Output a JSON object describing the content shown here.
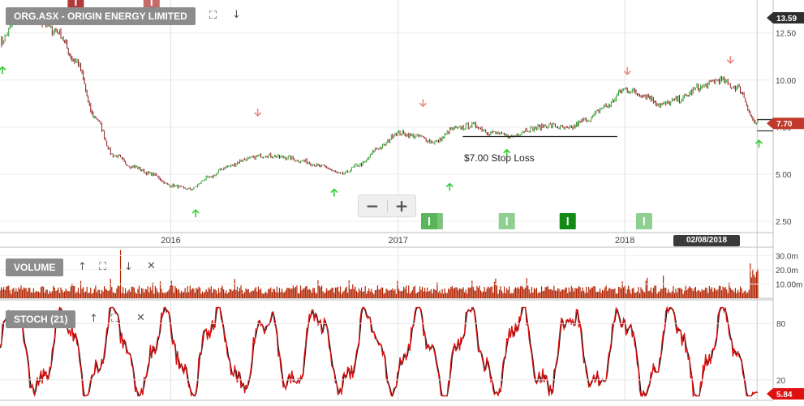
{
  "header": {
    "title": "ORG.ASX - ORIGIN ENERGY LIMITED",
    "fullscreen_icon": "expand-icon",
    "move_down_icon": "arrow-down-icon"
  },
  "zoom": {
    "minus": "−",
    "plus": "+"
  },
  "price_axis": {
    "ticks": [
      "12.50",
      "10.00",
      "7.50",
      "5.00",
      "2.50"
    ],
    "tick_values": [
      12.5,
      10.0,
      7.5,
      5.0,
      2.5
    ],
    "range": [
      1.9,
      14.25
    ]
  },
  "time_axis": {
    "labels": [
      "2016",
      "2017",
      "2018"
    ],
    "cursor_date": "02/08/2018"
  },
  "price_tags": {
    "high": "13.59",
    "current": "7.70",
    "high_value": 13.59,
    "current_value": 7.7
  },
  "stop_loss": {
    "label": "$7.00 Stop Loss",
    "value": 7.0
  },
  "volume_panel": {
    "label": "VOLUME",
    "ticks": [
      "30.0m",
      "20.0m",
      "10.00m"
    ],
    "tick_values": [
      30,
      20,
      10
    ]
  },
  "stoch_panel": {
    "label": "STOCH (21)",
    "ticks": [
      "80",
      "20"
    ],
    "tick_values": [
      80,
      20
    ],
    "current": "5.84",
    "current_value": 5.84
  },
  "colors": {
    "up_candle": "#2f9e2f",
    "down_candle": "#8b1a1a",
    "volume": "#b22200",
    "stoch_k": "#e01010",
    "stoch_d": "#111111",
    "buy_arrow": "#33cc33",
    "sell_arrow": "#e88888",
    "panel_label_bg": "#8c8c8c",
    "price_tag": "#c0392b"
  },
  "chart_data": {
    "type": "line",
    "title": "ORG.ASX - ORIGIN ENERGY LIMITED",
    "x_range": [
      "2015-04",
      "2018-08"
    ],
    "ylim": [
      1.9,
      14.25
    ],
    "series": [
      {
        "values_x": [
          "2015-04-01",
          "2015-05-01",
          "2015-06-01",
          "2015-07-01",
          "2015-08-01",
          "2015-09-01",
          "2015-10-01",
          "2015-11-01",
          "2015-12-01",
          "2016-01-01",
          "2016-02-01",
          "2016-03-01",
          "2016-04-01",
          "2016-05-01",
          "2016-06-01",
          "2016-07-01",
          "2016-08-01",
          "2016-09-01",
          "2016-10-01",
          "2016-11-01",
          "2016-12-01",
          "2017-01-01",
          "2017-02-01",
          "2017-03-01",
          "2017-04-01",
          "2017-05-01",
          "2017-06-01",
          "2017-07-01",
          "2017-08-01",
          "2017-09-01",
          "2017-10-01",
          "2017-11-01",
          "2017-12-01",
          "2018-01-01",
          "2018-02-01",
          "2018-03-01",
          "2018-04-01",
          "2018-05-01",
          "2018-06-01",
          "2018-07-01",
          "2018-08-01"
        ],
        "values": [
          12.0,
          13.4,
          13.2,
          12.6,
          11.0,
          8.0,
          6.0,
          5.4,
          5.0,
          4.4,
          4.2,
          4.8,
          5.4,
          5.8,
          6.0,
          5.9,
          5.7,
          5.4,
          5.0,
          5.5,
          6.4,
          7.2,
          7.0,
          6.7,
          7.4,
          7.6,
          7.2,
          7.0,
          7.4,
          7.6,
          7.4,
          7.9,
          8.6,
          9.5,
          9.2,
          8.7,
          9.0,
          9.6,
          10.0,
          9.6,
          7.7
        ]
      }
    ]
  }
}
